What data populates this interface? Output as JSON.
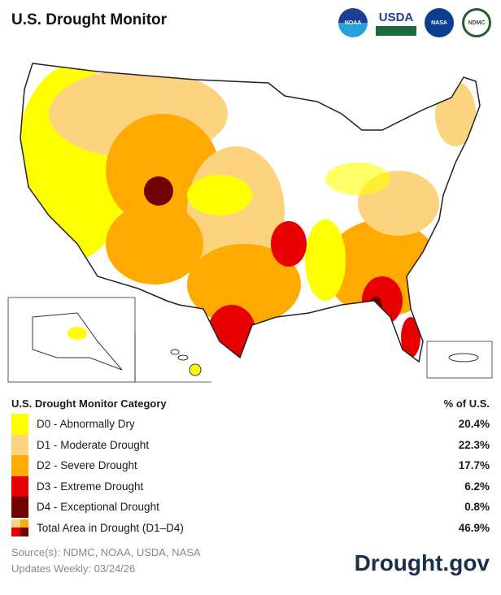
{
  "title": "U.S. Drought Monitor",
  "logos": [
    {
      "name": "NOAA",
      "text": "NOAA"
    },
    {
      "name": "USDA",
      "text": "USDA"
    },
    {
      "name": "NASA",
      "text": "NASA"
    },
    {
      "name": "NDMC",
      "text": "NDMC"
    }
  ],
  "legend": {
    "heading": "U.S. Drought Monitor Category",
    "pct_heading": "% of U.S.",
    "items": [
      {
        "label": "D0 - Abnormally Dry",
        "pct": "20.4%",
        "color": "#ffff00"
      },
      {
        "label": "D1 - Moderate Drought",
        "pct": "22.3%",
        "color": "#fcd37f"
      },
      {
        "label": "D2 - Severe Drought",
        "pct": "17.7%",
        "color": "#ffaa00"
      },
      {
        "label": "D3 - Extreme Drought",
        "pct": "6.2%",
        "color": "#e60000"
      },
      {
        "label": "D4 - Exceptional Drought",
        "pct": "0.8%",
        "color": "#730000"
      }
    ],
    "total": {
      "label": "Total Area in Drought (D1–D4)",
      "pct": "46.9%"
    }
  },
  "source": "Source(s): NDMC, NOAA, USDA, NASA",
  "updated": "Updates Weekly: 03/24/26",
  "brand": "Drought.gov"
}
